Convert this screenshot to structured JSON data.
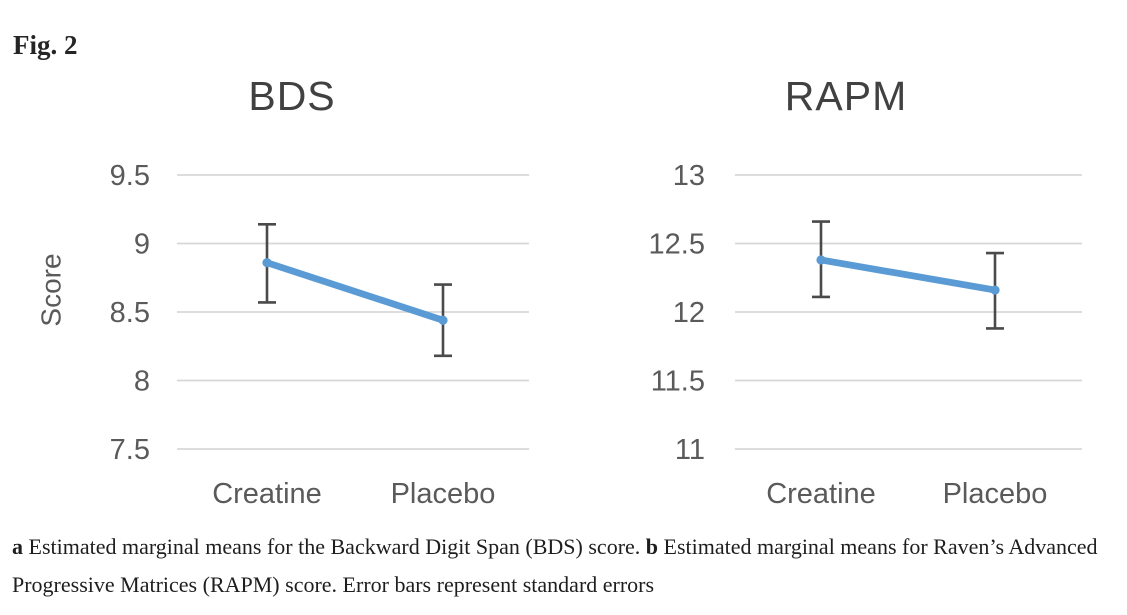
{
  "figure_label": "Fig. 2",
  "caption": {
    "part_a_label": "a",
    "part_a_text": " Estimated marginal means for the Backward Digit Span (BDS) score. ",
    "part_b_label": "b",
    "part_b_text": " Estimated marginal means for Raven’s Advanced Progressive Matrices (RAPM) score. Error bars represent standard errors"
  },
  "colors": {
    "line": "#5b9bd5",
    "error_bar": "#4a4a4a",
    "gridline": "#d8d8d8",
    "axis_text": "#5a5a5a",
    "title_text": "#414141"
  },
  "chart_data": [
    {
      "type": "line",
      "title": "BDS",
      "ylabel": "Score",
      "xlabel": "",
      "categories": [
        "Creatine",
        "Placebo"
      ],
      "series": [
        {
          "name": "Estimated marginal mean",
          "values": [
            8.86,
            8.44
          ]
        }
      ],
      "error_low": [
        8.57,
        8.18
      ],
      "error_high": [
        9.14,
        8.7
      ],
      "yticks": [
        9.5,
        9,
        8.5,
        8,
        7.5
      ],
      "ytick_labels": [
        "9.5",
        "9",
        "8.5",
        "8",
        "7.5"
      ],
      "ylim": [
        7.5,
        9.5
      ],
      "grid": true,
      "legend": false
    },
    {
      "type": "line",
      "title": "RAPM",
      "ylabel": "",
      "xlabel": "",
      "categories": [
        "Creatine",
        "Placebo"
      ],
      "series": [
        {
          "name": "Estimated marginal mean",
          "values": [
            12.38,
            12.16
          ]
        }
      ],
      "error_low": [
        12.11,
        11.88
      ],
      "error_high": [
        12.66,
        12.43
      ],
      "yticks": [
        13,
        12.5,
        12,
        11.5,
        11
      ],
      "ytick_labels": [
        "13",
        "12.5",
        "12",
        "11.5",
        "11"
      ],
      "ylim": [
        11,
        13
      ],
      "grid": true,
      "legend": false
    }
  ]
}
